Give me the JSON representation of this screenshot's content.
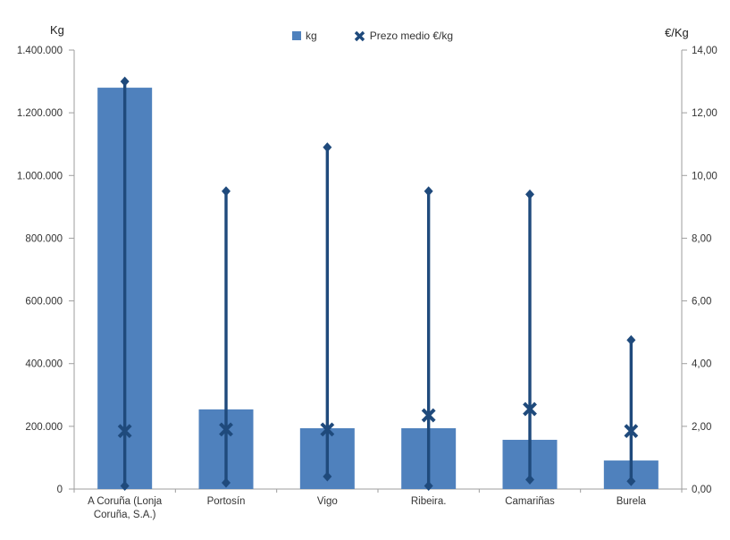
{
  "chart": {
    "left_axis_title": "Kg",
    "right_axis_title": "€/Kg",
    "legend": {
      "kg_label": "kg",
      "price_label": "Prezo medio €/kg"
    },
    "colors": {
      "bar": "#4f81bd",
      "price": "#1f4a7c",
      "axis_line": "#9e9e9e",
      "tick_text": "#333333",
      "background": "#ffffff"
    }
  },
  "chart_data": {
    "type": "bar",
    "title": "",
    "categories": [
      "A Coruña (Lonja Coruña, S.A.)",
      "Portosín",
      "Vigo",
      "Ribeira.",
      "Camariñas",
      "Burela"
    ],
    "series": [
      {
        "name": "kg",
        "type": "bar",
        "axis": "left",
        "color": "#4f81bd",
        "values": [
          1280000,
          254000,
          194000,
          194000,
          157000,
          91000
        ]
      },
      {
        "name": "Prezo medio €/kg",
        "type": "highlow-mean",
        "axis": "right",
        "color": "#1f4a7c",
        "high": [
          13.0,
          9.5,
          10.9,
          9.5,
          9.4,
          4.75
        ],
        "low": [
          0.1,
          0.2,
          0.4,
          0.1,
          0.3,
          0.25
        ],
        "mean": [
          1.85,
          1.9,
          1.9,
          2.35,
          2.55,
          1.85
        ]
      }
    ],
    "left_axis": {
      "label": "Kg",
      "min": 0,
      "max": 1400000,
      "step": 200000,
      "tick_labels": [
        "0",
        "200.000",
        "400.000",
        "600.000",
        "800.000",
        "1.000.000",
        "1.200.000",
        "1.400.000"
      ]
    },
    "right_axis": {
      "label": "€/Kg",
      "min": 0,
      "max": 14,
      "step": 2,
      "tick_labels": [
        "0,00",
        "2,00",
        "4,00",
        "6,00",
        "8,00",
        "10,00",
        "12,00",
        "14,00"
      ]
    },
    "grid": false,
    "legend_position": "top"
  }
}
